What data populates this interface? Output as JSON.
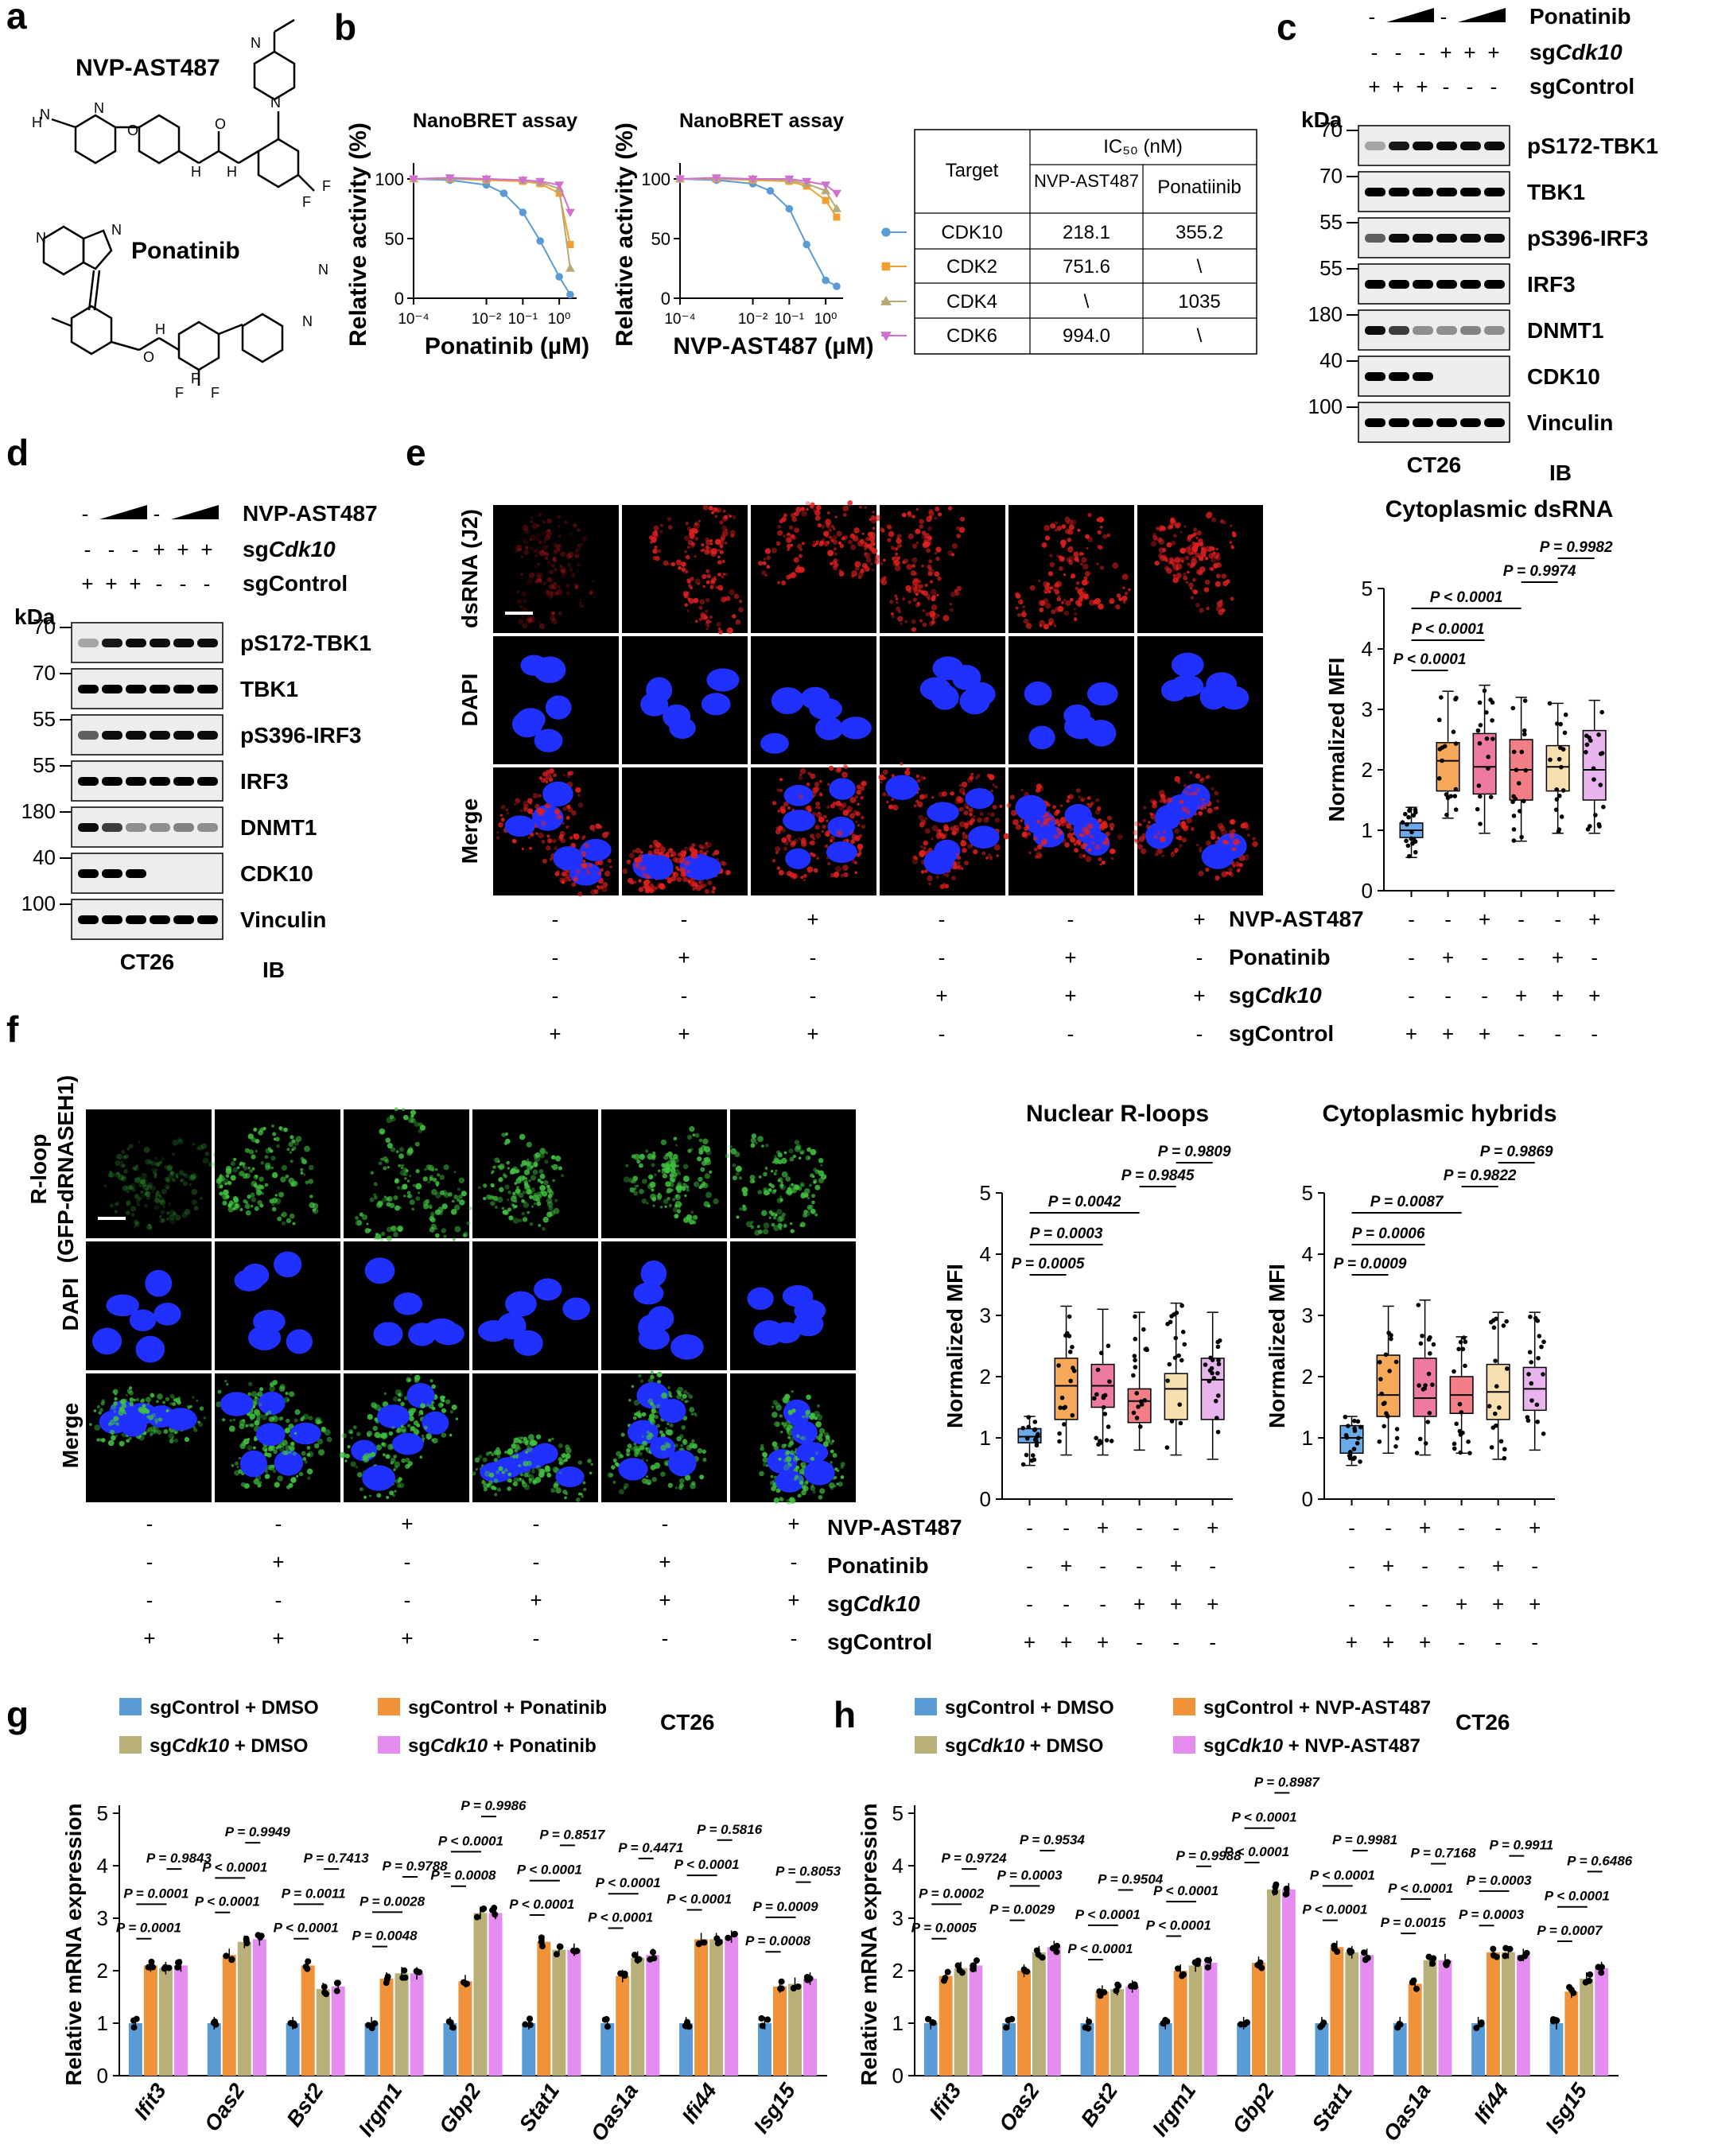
{
  "panel_letters": [
    "a",
    "b",
    "c",
    "d",
    "e",
    "f",
    "g",
    "h"
  ],
  "a": {
    "compound1": "NVP-AST487",
    "compound2": "Ponatinib"
  },
  "b": {
    "title_left": "NanoBRET assay",
    "title_right": "NanoBRET assay",
    "ylabel": "Relative activity (%)",
    "xlabel_left": "Ponatinib (µM)",
    "xlabel_right": "NVP-AST487 (µM)",
    "yticks": [
      "0",
      "50",
      "100"
    ],
    "xticks": [
      "10⁻⁴",
      "10⁻²",
      "10⁻¹",
      "10⁰"
    ],
    "table": {
      "col_target": "Target",
      "col_ic50": "IC₅₀ (nM)",
      "col_nvp": "NVP-AST487",
      "col_pona": "Ponatiinib",
      "rows": [
        {
          "target": "CDK10",
          "nvp": "218.1",
          "pona": "355.2",
          "color": "#5b9bd5",
          "marker": "circle"
        },
        {
          "target": "CDK2",
          "nvp": "751.6",
          "pona": "\\",
          "color": "#f0a030",
          "marker": "square"
        },
        {
          "target": "CDK4",
          "nvp": "\\",
          "pona": "1035",
          "color": "#b8a878",
          "marker": "triangle"
        },
        {
          "target": "CDK6",
          "nvp": "994.0",
          "pona": "\\",
          "color": "#d070d0",
          "marker": "triangle-down"
        }
      ]
    }
  },
  "blots": {
    "c": {
      "treatment": "Ponatinib",
      "sg_cdk": "sgCdk10",
      "sg_ctrl": "sgControl",
      "sg_cdk_signs": [
        "-",
        "-",
        "-",
        "+",
        "+",
        "+"
      ],
      "sg_ctrl_signs": [
        "+",
        "+",
        "+",
        "-",
        "-",
        "-"
      ],
      "kda": "kDa",
      "rows": [
        {
          "mw": "70",
          "label": "pS172-TBK1"
        },
        {
          "mw": "70",
          "label": "TBK1"
        },
        {
          "mw": "55",
          "label": "pS396-IRF3"
        },
        {
          "mw": "55",
          "label": "IRF3"
        },
        {
          "mw": "180",
          "label": "DNMT1"
        },
        {
          "mw": "40",
          "label": "CDK10"
        },
        {
          "mw": "100",
          "label": "Vinculin"
        }
      ],
      "cell": "CT26",
      "ib": "IB"
    },
    "d": {
      "treatment": "NVP-AST487",
      "sg_cdk": "sgCdk10",
      "sg_ctrl": "sgControl",
      "sg_cdk_signs": [
        "-",
        "-",
        "-",
        "+",
        "+",
        "+"
      ],
      "sg_ctrl_signs": [
        "+",
        "+",
        "+",
        "-",
        "-",
        "-"
      ],
      "kda": "kDa",
      "rows": [
        {
          "mw": "70",
          "label": "pS172-TBK1"
        },
        {
          "mw": "70",
          "label": "TBK1"
        },
        {
          "mw": "55",
          "label": "pS396-IRF3"
        },
        {
          "mw": "55",
          "label": "IRF3"
        },
        {
          "mw": "180",
          "label": "DNMT1"
        },
        {
          "mw": "40",
          "label": "CDK10"
        },
        {
          "mw": "100",
          "label": "Vinculin"
        }
      ],
      "cell": "CT26",
      "ib": "IB"
    }
  },
  "e": {
    "row_labels": [
      "dsRNA (J2)",
      "DAPI",
      "Merge"
    ],
    "chart_title": "Cytoplasmic dsRNA",
    "ylabel": "Normalized MFI",
    "yticks": [
      "5",
      "4",
      "3",
      "2",
      "1",
      "0"
    ],
    "pvalues": [
      "P = 0.9982",
      "P = 0.9974",
      "P < 0.0001",
      "P < 0.0001",
      "P < 0.0001"
    ],
    "treat_labels": [
      "NVP-AST487",
      "Ponatinib",
      "sgCdk10",
      "sgControl"
    ],
    "treat_signs": [
      [
        "-",
        "-",
        "+",
        "-",
        "-",
        "+"
      ],
      [
        "-",
        "+",
        "-",
        "-",
        "+",
        "-"
      ],
      [
        "-",
        "-",
        "-",
        "+",
        "+",
        "+"
      ],
      [
        "+",
        "+",
        "+",
        "-",
        "-",
        "-"
      ]
    ]
  },
  "f": {
    "row_labels": [
      "R-loop",
      "(GFP-dRNASEH1)",
      "DAPI",
      "Merge"
    ],
    "chart1_title": "Nuclear R-loops",
    "chart2_title": "Cytoplasmic hybrids",
    "ylabel": "Normalized MFI",
    "yticks": [
      "5",
      "4",
      "3",
      "2",
      "1",
      "0"
    ],
    "pvalues1": [
      "P = 0.9809",
      "P = 0.9845",
      "P = 0.0042",
      "P = 0.0003",
      "P = 0.0005"
    ],
    "pvalues2": [
      "P = 0.9869",
      "P = 0.9822",
      "P = 0.0087",
      "P = 0.0006",
      "P = 0.0009"
    ],
    "treat_labels": [
      "NVP-AST487",
      "Ponatinib",
      "sgCdk10",
      "sgControl"
    ],
    "treat_signs": [
      [
        "-",
        "-",
        "+",
        "-",
        "-",
        "+"
      ],
      [
        "-",
        "+",
        "-",
        "-",
        "+",
        "-"
      ],
      [
        "-",
        "-",
        "-",
        "+",
        "+",
        "+"
      ],
      [
        "+",
        "+",
        "+",
        "-",
        "-",
        "-"
      ]
    ]
  },
  "g": {
    "legend": [
      "sgControl + DMSO",
      "sgControl + Ponatinib",
      "sgCdk10 + DMSO",
      "sgCdk10 + Ponatinib"
    ],
    "cell": "CT26",
    "ylabel": "Relative mRNA expression",
    "pvalues": [
      [
        "P = 0.9843",
        "P = 0.0001",
        "P = 0.0001"
      ],
      [
        "P = 0.9949",
        "P < 0.0001",
        "P < 0.0001"
      ],
      [
        "P = 0.7413",
        "P = 0.0011",
        "P < 0.0001"
      ],
      [
        "P = 0.9788",
        "P = 0.0028",
        "P = 0.0048"
      ],
      [
        "P = 0.9986",
        "P < 0.0001",
        "P = 0.0008"
      ],
      [
        "P = 0.8517",
        "P < 0.0001",
        "P < 0.0001"
      ],
      [
        "P = 0.4471",
        "P < 0.0001",
        "P < 0.0001"
      ],
      [
        "P = 0.5816",
        "P < 0.0001",
        "P < 0.0001"
      ],
      [
        "P = 0.8053",
        "P = 0.0009",
        "P = 0.0008"
      ]
    ]
  },
  "h": {
    "legend": [
      "sgControl + DMSO",
      "sgControl + NVP-AST487",
      "sgCdk10 + DMSO",
      "sgCdk10 + NVP-AST487"
    ],
    "cell": "CT26",
    "ylabel": "Relative mRNA expression",
    "pvalues": [
      [
        "P = 0.9724",
        "P = 0.0002",
        "P = 0.0005"
      ],
      [
        "P = 0.9534",
        "P = 0.0003",
        "P = 0.0029"
      ],
      [
        "P = 0.9504",
        "P < 0.0001",
        "P < 0.0001"
      ],
      [
        "P = 0.9988",
        "P < 0.0001",
        "P < 0.0001"
      ],
      [
        "P = 0.8987",
        "P < 0.0001",
        "P < 0.0001"
      ],
      [
        "P = 0.9981",
        "P < 0.0001",
        "P < 0.0001"
      ],
      [
        "P = 0.7168",
        "P < 0.0001",
        "P = 0.0015"
      ],
      [
        "P = 0.9911",
        "P = 0.0003",
        "P = 0.0003"
      ],
      [
        "P = 0.6486",
        "P < 0.0001",
        "P = 0.0007"
      ]
    ]
  },
  "colors": {
    "blue": "#5b9bd5",
    "orange": "#f0923a",
    "olive": "#b8b078",
    "violet": "#e48cf0",
    "box_blue": "#6aaae8",
    "box_orange": "#f7a95a",
    "box_pink": "#ef7aa0",
    "box_salmon": "#f27e86",
    "box_cream": "#f7dfb0",
    "box_lilac": "#e8b4ee"
  },
  "chart_data": [
    {
      "type": "line",
      "title": "NanoBRET assay",
      "xlabel": "Ponatinib (µM)",
      "ylabel": "Relative activity (%)",
      "xscale": "log",
      "xlim": [
        0.0001,
        3
      ],
      "ylim": [
        0,
        110
      ],
      "series": [
        {
          "name": "CDK10",
          "x": [
            0.0001,
            0.001,
            0.01,
            0.03,
            0.1,
            0.3,
            1,
            2
          ],
          "values": [
            100,
            99,
            95,
            88,
            72,
            48,
            18,
            3
          ]
        },
        {
          "name": "CDK2",
          "x": [
            0.0001,
            0.001,
            0.01,
            0.1,
            0.3,
            1,
            2
          ],
          "values": [
            100,
            100,
            99,
            98,
            96,
            88,
            45
          ]
        },
        {
          "name": "CDK4",
          "x": [
            0.0001,
            0.001,
            0.01,
            0.1,
            0.3,
            1,
            2
          ],
          "values": [
            100,
            100,
            100,
            99,
            97,
            92,
            25
          ]
        },
        {
          "name": "CDK6",
          "x": [
            0.0001,
            0.001,
            0.01,
            0.1,
            0.3,
            1,
            2
          ],
          "values": [
            100,
            101,
            100,
            99,
            98,
            95,
            72
          ]
        }
      ]
    },
    {
      "type": "line",
      "title": "NanoBRET assay",
      "xlabel": "NVP-AST487 (µM)",
      "ylabel": "Relative activity (%)",
      "xscale": "log",
      "xlim": [
        0.0001,
        3
      ],
      "ylim": [
        0,
        110
      ],
      "series": [
        {
          "name": "CDK10",
          "x": [
            0.0001,
            0.001,
            0.01,
            0.03,
            0.1,
            0.3,
            1,
            2
          ],
          "values": [
            100,
            99,
            96,
            90,
            75,
            45,
            15,
            10
          ]
        },
        {
          "name": "CDK2",
          "x": [
            0.0001,
            0.001,
            0.01,
            0.1,
            0.3,
            1,
            2
          ],
          "values": [
            100,
            100,
            99,
            98,
            94,
            82,
            68
          ]
        },
        {
          "name": "CDK4",
          "x": [
            0.0001,
            0.001,
            0.01,
            0.1,
            0.3,
            1,
            2
          ],
          "values": [
            100,
            100,
            100,
            99,
            96,
            90,
            75
          ]
        },
        {
          "name": "CDK6",
          "x": [
            0.0001,
            0.001,
            0.01,
            0.1,
            0.3,
            1,
            2
          ],
          "values": [
            100,
            101,
            100,
            100,
            98,
            95,
            88
          ]
        }
      ]
    },
    {
      "type": "box",
      "title": "Cytoplasmic dsRNA",
      "ylabel": "Normalized MFI",
      "ylim": [
        0,
        5
      ],
      "categories": [
        "sgControl",
        "sgControl + Ponatinib",
        "sgControl + NVP-AST487",
        "sgCdk10",
        "sgCdk10 + Ponatinib",
        "sgCdk10 + NVP-AST487"
      ],
      "boxes": [
        {
          "min": 0.55,
          "q1": 0.88,
          "median": 1.0,
          "q3": 1.12,
          "max": 1.38
        },
        {
          "min": 1.2,
          "q1": 1.65,
          "median": 2.15,
          "q3": 2.45,
          "max": 3.3
        },
        {
          "min": 0.95,
          "q1": 1.6,
          "median": 2.05,
          "q3": 2.6,
          "max": 3.4
        },
        {
          "min": 0.82,
          "q1": 1.5,
          "median": 2.0,
          "q3": 2.5,
          "max": 3.2
        },
        {
          "min": 0.95,
          "q1": 1.65,
          "median": 2.05,
          "q3": 2.4,
          "max": 3.1
        },
        {
          "min": 0.95,
          "q1": 1.5,
          "median": 2.0,
          "q3": 2.65,
          "max": 3.15
        }
      ]
    },
    {
      "type": "box",
      "title": "Nuclear R-loops",
      "ylabel": "Normalized MFI",
      "ylim": [
        0,
        5
      ],
      "categories": [
        "sgControl",
        "sgControl + Ponatinib",
        "sgControl + NVP-AST487",
        "sgCdk10",
        "sgCdk10 + Ponatinib",
        "sgCdk10 + NVP-AST487"
      ],
      "boxes": [
        {
          "min": 0.55,
          "q1": 0.92,
          "median": 1.02,
          "q3": 1.15,
          "max": 1.35
        },
        {
          "min": 0.72,
          "q1": 1.3,
          "median": 1.85,
          "q3": 2.3,
          "max": 3.15
        },
        {
          "min": 0.72,
          "q1": 1.5,
          "median": 1.85,
          "q3": 2.2,
          "max": 3.1
        },
        {
          "min": 0.8,
          "q1": 1.25,
          "median": 1.6,
          "q3": 1.8,
          "max": 3.05
        },
        {
          "min": 0.72,
          "q1": 1.3,
          "median": 1.8,
          "q3": 2.05,
          "max": 3.2
        },
        {
          "min": 0.65,
          "q1": 1.3,
          "median": 1.95,
          "q3": 2.3,
          "max": 3.05
        }
      ]
    },
    {
      "type": "box",
      "title": "Cytoplasmic hybrids",
      "ylabel": "Normalized MFI",
      "ylim": [
        0,
        5
      ],
      "categories": [
        "sgControl",
        "sgControl + Ponatinib",
        "sgControl + NVP-AST487",
        "sgCdk10",
        "sgCdk10 + Ponatinib",
        "sgCdk10 + NVP-AST487"
      ],
      "boxes": [
        {
          "min": 0.55,
          "q1": 0.75,
          "median": 1.0,
          "q3": 1.2,
          "max": 1.35
        },
        {
          "min": 0.75,
          "q1": 1.35,
          "median": 1.7,
          "q3": 2.35,
          "max": 3.15
        },
        {
          "min": 0.72,
          "q1": 1.35,
          "median": 1.65,
          "q3": 2.3,
          "max": 3.25
        },
        {
          "min": 0.75,
          "q1": 1.4,
          "median": 1.7,
          "q3": 2.0,
          "max": 2.65
        },
        {
          "min": 0.65,
          "q1": 1.3,
          "median": 1.75,
          "q3": 2.2,
          "max": 3.05
        },
        {
          "min": 0.8,
          "q1": 1.45,
          "median": 1.8,
          "q3": 2.15,
          "max": 3.05
        }
      ]
    },
    {
      "type": "bar",
      "title": "CT26",
      "ylabel": "Relative mRNA expression",
      "ylim": [
        0,
        5
      ],
      "categories": [
        "Ifit3",
        "Oas2",
        "Bst2",
        "Irgm1",
        "Gbp2",
        "Stat1",
        "Oas1a",
        "Ifi44",
        "Isg15"
      ],
      "series": [
        {
          "name": "sgControl + DMSO",
          "values": [
            1.0,
            1.0,
            1.0,
            1.0,
            1.0,
            1.0,
            1.0,
            1.0,
            1.0
          ]
        },
        {
          "name": "sgControl + Ponatinib",
          "values": [
            2.1,
            2.3,
            2.1,
            1.85,
            1.8,
            2.55,
            1.9,
            2.6,
            1.7
          ]
        },
        {
          "name": "sgCdk10 + DMSO",
          "values": [
            2.05,
            2.55,
            1.65,
            1.95,
            3.1,
            2.4,
            2.25,
            2.6,
            1.75
          ]
        },
        {
          "name": "sgCdk10 + Ponatinib",
          "values": [
            2.1,
            2.6,
            1.7,
            1.95,
            3.1,
            2.4,
            2.3,
            2.65,
            1.85
          ]
        }
      ]
    },
    {
      "type": "bar",
      "title": "CT26",
      "ylabel": "Relative mRNA expression",
      "ylim": [
        0,
        5
      ],
      "categories": [
        "Ifit3",
        "Oas2",
        "Bst2",
        "Irgm1",
        "Gbp2",
        "Stat1",
        "Oas1a",
        "Ifi44",
        "Isg15"
      ],
      "series": [
        {
          "name": "sgControl + DMSO",
          "values": [
            1.0,
            1.0,
            1.0,
            1.0,
            1.0,
            1.0,
            1.0,
            1.0,
            1.0
          ]
        },
        {
          "name": "sgControl + NVP-AST487",
          "values": [
            1.9,
            2.0,
            1.6,
            2.0,
            2.15,
            2.45,
            1.75,
            2.35,
            1.6
          ]
        },
        {
          "name": "sgCdk10 + DMSO",
          "values": [
            2.05,
            2.35,
            1.65,
            2.1,
            3.55,
            2.35,
            2.2,
            2.35,
            1.85
          ]
        },
        {
          "name": "sgCdk10 + NVP-AST487",
          "values": [
            2.1,
            2.45,
            1.7,
            2.15,
            3.55,
            2.3,
            2.2,
            2.3,
            2.05
          ]
        }
      ]
    }
  ]
}
